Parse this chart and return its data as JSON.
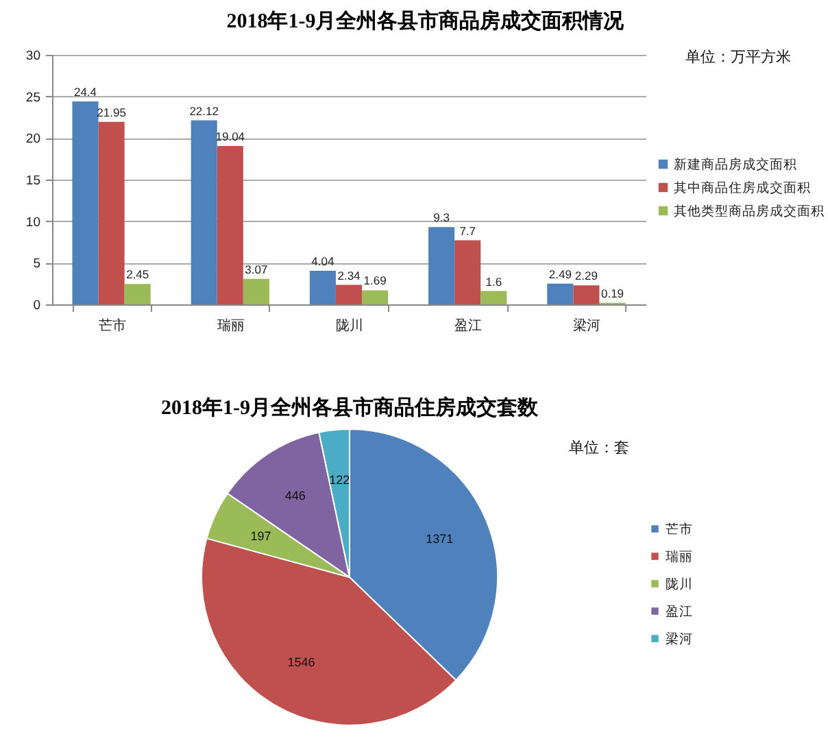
{
  "chart_data": [
    {
      "type": "bar",
      "title": "2018年1-9月全州各县市商品房成交面积情况",
      "annotations": [
        "单位：万平方米"
      ],
      "categories": [
        "芒市",
        "瑞丽",
        "陇川",
        "盈江",
        "梁河"
      ],
      "series": [
        {
          "name": "新建商品房成交面积",
          "color": "#4f81bd",
          "values": [
            24.4,
            22.12,
            4.04,
            9.3,
            2.49
          ]
        },
        {
          "name": "其中商品住房成交面积",
          "color": "#c0504d",
          "values": [
            21.95,
            19.04,
            2.34,
            7.7,
            2.29
          ]
        },
        {
          "name": "其他类型商品房成交面积",
          "color": "#9bbb59",
          "values": [
            2.45,
            3.07,
            1.69,
            1.6,
            0.19
          ]
        }
      ],
      "ylim": [
        0,
        30
      ],
      "yticks": [
        0,
        5,
        10,
        15,
        20,
        25,
        30
      ],
      "grid": "y",
      "legend": "right",
      "data_labels": true
    },
    {
      "type": "pie",
      "title": "2018年1-9月全州各县市商品住房成交套数",
      "annotations": [
        "单位：套"
      ],
      "categories": [
        "芒市",
        "瑞丽",
        "陇川",
        "盈江",
        "梁河"
      ],
      "values": [
        1371,
        1546,
        197,
        446,
        122
      ],
      "colors": [
        "#4f81bd",
        "#c0504d",
        "#9bbb59",
        "#8064a2",
        "#4bacc6"
      ],
      "legend": "right",
      "data_labels": true
    }
  ]
}
